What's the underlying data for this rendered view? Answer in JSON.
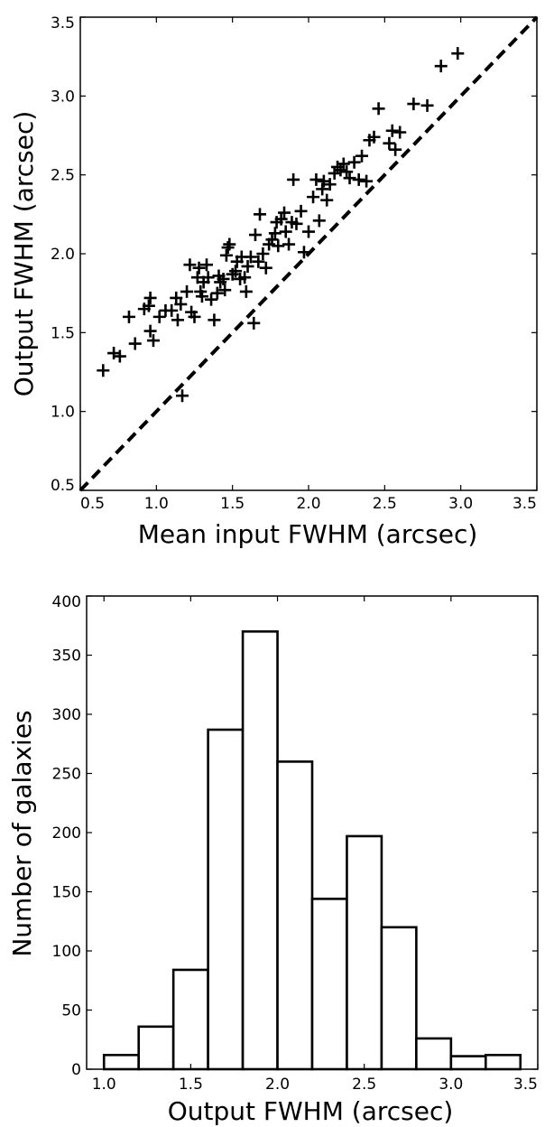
{
  "chart_data": [
    {
      "type": "scatter",
      "title": "",
      "xlabel": "Mean input FWHM (arcsec)",
      "ylabel": "Output FWHM (arcsec)",
      "xlim": [
        0.5,
        3.5
      ],
      "ylim": [
        0.5,
        3.5
      ],
      "xticks": [
        "0.5",
        "1.0",
        "1.5",
        "2.0",
        "2.5",
        "3.0",
        "3.5"
      ],
      "yticks": [
        "0.5",
        "1.0",
        "1.5",
        "2.0",
        "2.5",
        "3.0",
        "3.5"
      ],
      "marker": "plus",
      "reference_line": {
        "style": "dashed",
        "from": [
          0.5,
          0.5
        ],
        "to": [
          3.5,
          3.5
        ]
      },
      "grid": false,
      "points": [
        [
          0.65,
          1.26
        ],
        [
          0.72,
          1.37
        ],
        [
          0.76,
          1.35
        ],
        [
          0.82,
          1.6
        ],
        [
          0.86,
          1.43
        ],
        [
          0.92,
          1.65
        ],
        [
          0.95,
          1.67
        ],
        [
          0.96,
          1.72
        ],
        [
          0.96,
          1.51
        ],
        [
          0.98,
          1.45
        ],
        [
          1.02,
          1.6
        ],
        [
          1.06,
          1.64
        ],
        [
          1.1,
          1.64
        ],
        [
          1.13,
          1.72
        ],
        [
          1.14,
          1.58
        ],
        [
          1.16,
          1.68
        ],
        [
          1.17,
          1.1
        ],
        [
          1.2,
          1.76
        ],
        [
          1.22,
          1.93
        ],
        [
          1.23,
          1.63
        ],
        [
          1.25,
          1.6
        ],
        [
          1.27,
          1.85
        ],
        [
          1.28,
          1.91
        ],
        [
          1.29,
          1.76
        ],
        [
          1.3,
          1.73
        ],
        [
          1.31,
          1.82
        ],
        [
          1.33,
          1.93
        ],
        [
          1.34,
          1.85
        ],
        [
          1.36,
          1.71
        ],
        [
          1.38,
          1.58
        ],
        [
          1.4,
          1.75
        ],
        [
          1.41,
          1.86
        ],
        [
          1.42,
          1.82
        ],
        [
          1.44,
          1.84
        ],
        [
          1.45,
          1.77
        ],
        [
          1.46,
          1.99
        ],
        [
          1.47,
          2.04
        ],
        [
          1.48,
          2.06
        ],
        [
          1.5,
          1.87
        ],
        [
          1.52,
          1.89
        ],
        [
          1.53,
          1.95
        ],
        [
          1.55,
          1.84
        ],
        [
          1.56,
          1.98
        ],
        [
          1.58,
          1.85
        ],
        [
          1.59,
          1.76
        ],
        [
          1.6,
          1.92
        ],
        [
          1.62,
          1.98
        ],
        [
          1.64,
          1.56
        ],
        [
          1.65,
          2.12
        ],
        [
          1.67,
          1.95
        ],
        [
          1.68,
          2.25
        ],
        [
          1.7,
          2.0
        ],
        [
          1.72,
          1.91
        ],
        [
          1.74,
          2.06
        ],
        [
          1.76,
          2.09
        ],
        [
          1.78,
          2.13
        ],
        [
          1.79,
          2.2
        ],
        [
          1.8,
          2.05
        ],
        [
          1.82,
          2.22
        ],
        [
          1.84,
          2.26
        ],
        [
          1.85,
          2.14
        ],
        [
          1.87,
          2.06
        ],
        [
          1.89,
          2.2
        ],
        [
          1.9,
          2.47
        ],
        [
          1.92,
          2.19
        ],
        [
          1.95,
          2.27
        ],
        [
          1.97,
          2.01
        ],
        [
          2.0,
          2.14
        ],
        [
          2.03,
          2.36
        ],
        [
          2.05,
          2.47
        ],
        [
          2.07,
          2.21
        ],
        [
          2.09,
          2.41
        ],
        [
          2.1,
          2.46
        ],
        [
          2.12,
          2.34
        ],
        [
          2.14,
          2.44
        ],
        [
          2.17,
          2.51
        ],
        [
          2.19,
          2.55
        ],
        [
          2.21,
          2.53
        ],
        [
          2.23,
          2.57
        ],
        [
          2.25,
          2.52
        ],
        [
          2.27,
          2.48
        ],
        [
          2.3,
          2.58
        ],
        [
          2.33,
          2.47
        ],
        [
          2.35,
          2.62
        ],
        [
          2.38,
          2.46
        ],
        [
          2.4,
          2.72
        ],
        [
          2.43,
          2.74
        ],
        [
          2.46,
          2.92
        ],
        [
          2.53,
          2.7
        ],
        [
          2.55,
          2.78
        ],
        [
          2.57,
          2.66
        ],
        [
          2.6,
          2.77
        ],
        [
          2.69,
          2.95
        ],
        [
          2.78,
          2.94
        ],
        [
          2.87,
          3.19
        ],
        [
          2.98,
          3.27
        ]
      ]
    },
    {
      "type": "bar",
      "title": "",
      "xlabel": "Output FWHM (arcsec)",
      "ylabel": "Number of galaxies",
      "xlim": [
        0.9,
        3.5
      ],
      "ylim": [
        0,
        400
      ],
      "xticks": [
        "1.0",
        "1.5",
        "2.0",
        "2.5",
        "3.0",
        "3.5"
      ],
      "yticks": [
        "0",
        "50",
        "100",
        "150",
        "200",
        "250",
        "300",
        "350",
        "400"
      ],
      "grid": false,
      "bin_edges": [
        1.0,
        1.2,
        1.4,
        1.6,
        1.8,
        2.0,
        2.2,
        2.4,
        2.6,
        2.8,
        3.0,
        3.2,
        3.4
      ],
      "values": [
        12,
        36,
        84,
        287,
        370,
        260,
        144,
        197,
        120,
        26,
        11,
        12
      ]
    }
  ]
}
